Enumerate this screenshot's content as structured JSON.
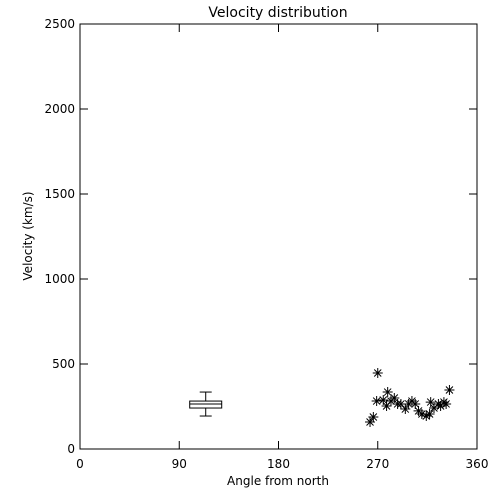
{
  "chart_data": {
    "type": "scatter",
    "title": "Velocity distribution",
    "x_label": "Angle from north",
    "y_label": "Velocity (km/s)",
    "xlim": [
      0,
      360
    ],
    "xticks": [
      0,
      90,
      180,
      270,
      360
    ],
    "ylim": [
      0,
      2500
    ],
    "yticks": [
      0,
      500,
      1000,
      1500,
      2000,
      2500
    ],
    "color": "#000000",
    "box": {
      "x": 114,
      "whisker_low": 194,
      "q1": 241,
      "median": 265,
      "q3": 282,
      "whisker_high": 335
    },
    "x": [
      263,
      266,
      270,
      269,
      275,
      278,
      279,
      282,
      285,
      288,
      291,
      295,
      298,
      301,
      304,
      307,
      310,
      314,
      317,
      318,
      321,
      325,
      327,
      330,
      332,
      335
    ],
    "values": [
      159,
      188,
      447,
      282,
      288,
      253,
      335,
      282,
      300,
      265,
      265,
      235,
      265,
      282,
      265,
      224,
      206,
      194,
      206,
      276,
      241,
      265,
      253,
      276,
      265,
      347
    ]
  }
}
